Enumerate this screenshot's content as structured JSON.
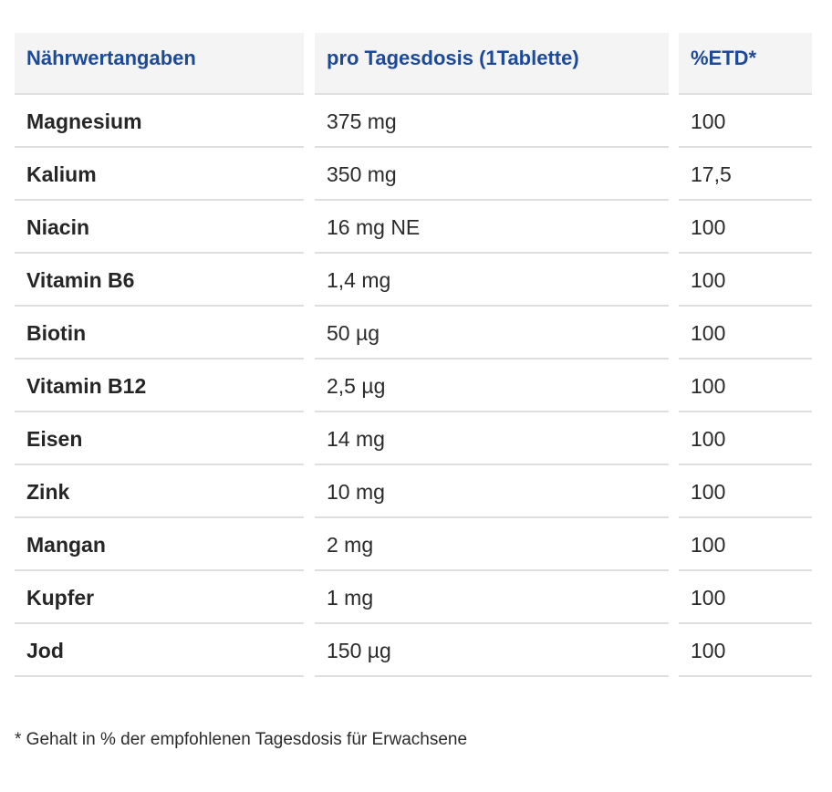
{
  "table": {
    "headers": [
      "Nährwertangaben",
      "pro Tagesdosis (1Tablette)",
      "%ETD*"
    ],
    "rows": [
      [
        "Magnesium",
        "375 mg",
        "100"
      ],
      [
        "Kalium",
        "350 mg",
        "17,5"
      ],
      [
        "Niacin",
        "16 mg NE",
        "100"
      ],
      [
        "Vitamin B6",
        "1,4 mg",
        "100"
      ],
      [
        "Biotin",
        "50 µg",
        "100"
      ],
      [
        "Vitamin B12",
        "2,5 µg",
        "100"
      ],
      [
        "Eisen",
        "14 mg",
        "100"
      ],
      [
        "Zink",
        "10 mg",
        "100"
      ],
      [
        "Mangan",
        "2 mg",
        "100"
      ],
      [
        "Kupfer",
        "1 mg",
        "100"
      ],
      [
        "Jod",
        "150 µg",
        "100"
      ]
    ]
  },
  "footnote": "* Gehalt in % der empfohlenen Tagesdosis für Erwachsene",
  "colors": {
    "header_text": "#1d4996",
    "header_bg": "#f4f4f4",
    "row_divider": "#dedede"
  }
}
